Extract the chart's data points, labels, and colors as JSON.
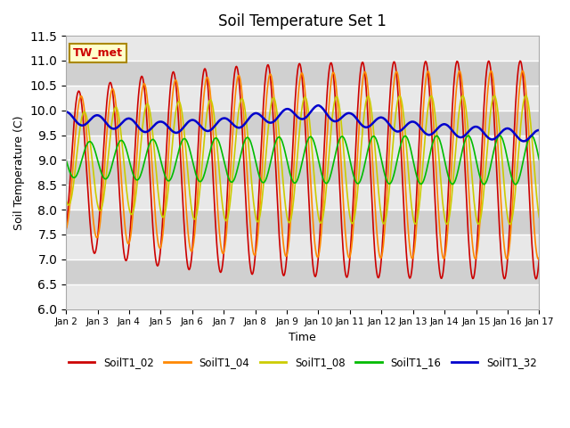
{
  "title": "Soil Temperature Set 1",
  "xlabel": "Time",
  "ylabel": "Soil Temperature (C)",
  "ylim": [
    6.0,
    11.5
  ],
  "yticks": [
    6.0,
    6.5,
    7.0,
    7.5,
    8.0,
    8.5,
    9.0,
    9.5,
    10.0,
    10.5,
    11.0,
    11.5
  ],
  "bg_color": "#dcdcdc",
  "fig_color": "#ffffff",
  "annotation_text": "TW_met",
  "annotation_bg": "#ffffcc",
  "annotation_fg": "#cc0000",
  "legend_labels": [
    "SoilT1_02",
    "SoilT1_04",
    "SoilT1_08",
    "SoilT1_16",
    "SoilT1_32"
  ],
  "line_colors": [
    "#cc0000",
    "#ff8800",
    "#cccc00",
    "#00bb00",
    "#0000cc"
  ],
  "line_widths": [
    1.2,
    1.2,
    1.2,
    1.2,
    1.8
  ],
  "xtick_labels": [
    "Jan 2",
    "Jan 3",
    "Jan 4",
    "Jan 5",
    "Jan 6",
    "Jan 7",
    "Jan 8",
    "Jan 9",
    "Jan 10",
    "Jan 11",
    "Jan 12",
    "Jan 13",
    "Jan 14",
    "Jan 15",
    "Jan 16",
    "Jan 17"
  ],
  "n_days": 15,
  "pts_per_day": 48
}
